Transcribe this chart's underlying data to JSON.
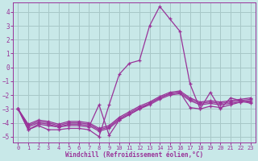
{
  "xlabel": "Windchill (Refroidissement éolien,°C)",
  "bg_color": "#c8e8e8",
  "grid_color": "#a8c8c8",
  "line_color": "#993399",
  "xlim": [
    -0.5,
    23.5
  ],
  "ylim": [
    -5.4,
    4.7
  ],
  "yticks": [
    -5,
    -4,
    -3,
    -2,
    -1,
    0,
    1,
    2,
    3,
    4
  ],
  "xticks": [
    0,
    1,
    2,
    3,
    4,
    5,
    6,
    7,
    8,
    9,
    10,
    11,
    12,
    13,
    14,
    15,
    16,
    17,
    18,
    19,
    20,
    21,
    22,
    23
  ],
  "lines": [
    [
      -3.0,
      -4.5,
      -4.2,
      -4.5,
      -4.5,
      -4.4,
      -4.4,
      -4.5,
      -5.0,
      -2.7,
      -0.5,
      0.3,
      0.5,
      3.0,
      4.4,
      3.5,
      2.6,
      -1.2,
      -3.0,
      -1.8,
      -3.0,
      -2.2,
      -2.4,
      -2.6
    ],
    [
      -3.0,
      -4.5,
      -4.1,
      -4.2,
      -4.3,
      -4.2,
      -4.2,
      -4.3,
      -2.7,
      -4.9,
      -3.8,
      -3.4,
      -3.0,
      -2.6,
      -2.2,
      -1.9,
      -1.8,
      -2.9,
      -3.0,
      -2.8,
      -2.9,
      -2.7,
      -2.5,
      -2.5
    ],
    [
      -3.0,
      -4.3,
      -4.0,
      -4.1,
      -4.3,
      -4.1,
      -4.1,
      -4.2,
      -4.6,
      -4.4,
      -3.8,
      -3.4,
      -3.0,
      -2.7,
      -2.3,
      -2.0,
      -1.9,
      -2.4,
      -2.7,
      -2.6,
      -2.7,
      -2.6,
      -2.5,
      -2.4
    ],
    [
      -3.0,
      -4.2,
      -3.9,
      -4.0,
      -4.2,
      -4.0,
      -4.0,
      -4.1,
      -4.5,
      -4.3,
      -3.7,
      -3.3,
      -2.9,
      -2.6,
      -2.2,
      -1.9,
      -1.8,
      -2.3,
      -2.6,
      -2.5,
      -2.6,
      -2.5,
      -2.4,
      -2.3
    ],
    [
      -3.0,
      -4.1,
      -3.8,
      -3.9,
      -4.1,
      -3.9,
      -3.9,
      -4.0,
      -4.4,
      -4.2,
      -3.6,
      -3.2,
      -2.8,
      -2.5,
      -2.1,
      -1.8,
      -1.7,
      -2.2,
      -2.5,
      -2.4,
      -2.5,
      -2.4,
      -2.3,
      -2.2
    ]
  ]
}
